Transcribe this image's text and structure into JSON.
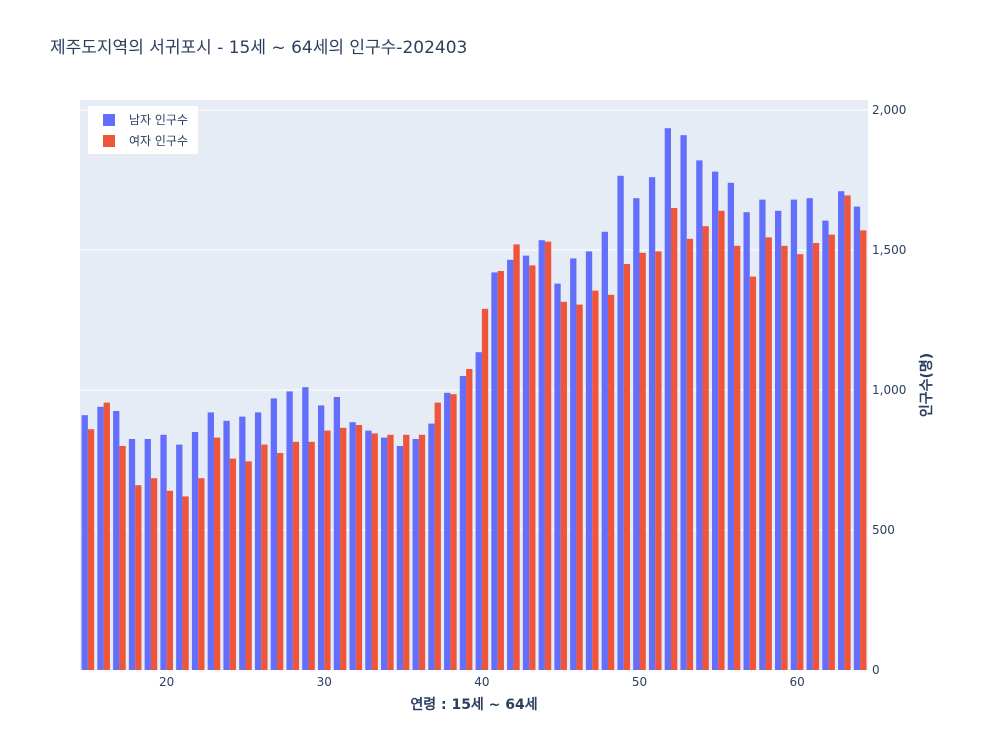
{
  "chart_data": {
    "type": "bar",
    "title": "제주도지역의 서귀포시 - 15세 ~ 64세의 인구수-202403",
    "xlabel": "연령 : 15세 ~ 64세",
    "ylabel": "인구수(명)",
    "x": [
      15,
      16,
      17,
      18,
      19,
      20,
      21,
      22,
      23,
      24,
      25,
      26,
      27,
      28,
      29,
      30,
      31,
      32,
      33,
      34,
      35,
      36,
      37,
      38,
      39,
      40,
      41,
      42,
      43,
      44,
      45,
      46,
      47,
      48,
      49,
      50,
      51,
      52,
      53,
      54,
      55,
      56,
      57,
      58,
      59,
      60,
      61,
      62,
      63,
      64
    ],
    "xticks": [
      20,
      30,
      40,
      50,
      60
    ],
    "xtick_labels": [
      "20",
      "30",
      "40",
      "50",
      "60"
    ],
    "xlim": [
      14.5,
      64.5
    ],
    "ylim": [
      0,
      2000
    ],
    "yticks": [
      0,
      500,
      1000,
      1500,
      2000
    ],
    "ytick_labels": [
      "0",
      "500",
      "1,000",
      "1,500",
      "2,000"
    ],
    "y_axis_side": "right",
    "grid": true,
    "legend_position": "top-left",
    "series": [
      {
        "name": "남자 인구수",
        "color": "#636efa",
        "values": [
          910,
          940,
          925,
          825,
          825,
          840,
          805,
          850,
          920,
          890,
          905,
          920,
          970,
          995,
          1010,
          945,
          975,
          885,
          855,
          830,
          800,
          825,
          880,
          990,
          1050,
          1135,
          1420,
          1465,
          1480,
          1535,
          1380,
          1470,
          1495,
          1565,
          1765,
          1685,
          1760,
          1935,
          1910,
          1820,
          1780,
          1740,
          1635,
          1680,
          1640,
          1680,
          1685,
          1605,
          1710,
          1655
        ]
      },
      {
        "name": "여자 인구수",
        "color": "#ef553b",
        "values": [
          860,
          955,
          800,
          660,
          685,
          640,
          620,
          685,
          830,
          755,
          745,
          805,
          775,
          815,
          815,
          855,
          865,
          875,
          845,
          840,
          840,
          840,
          955,
          985,
          1075,
          1290,
          1425,
          1520,
          1445,
          1530,
          1315,
          1305,
          1355,
          1340,
          1450,
          1490,
          1495,
          1650,
          1540,
          1585,
          1640,
          1515,
          1405,
          1545,
          1515,
          1485,
          1525,
          1555,
          1695,
          1570
        ]
      }
    ]
  }
}
